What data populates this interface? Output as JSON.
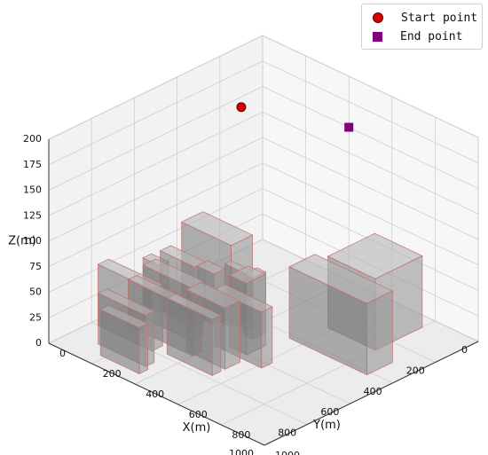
{
  "chart_data": {
    "type": "3d-scatter-with-boxes",
    "title": "",
    "xlabel": "X(m)",
    "ylabel": "Y(m)",
    "zlabel": "Z(m)",
    "xlim": [
      0,
      1000
    ],
    "ylim": [
      0,
      1000
    ],
    "zlim": [
      0,
      200
    ],
    "x_ticks": [
      "0",
      "200",
      "400",
      "600",
      "800",
      "1000"
    ],
    "y_ticks": [
      "0",
      "200",
      "400",
      "600",
      "800",
      "1000"
    ],
    "z_ticks": [
      "0",
      "25",
      "50",
      "75",
      "100",
      "125",
      "150",
      "175",
      "200"
    ],
    "grid": true,
    "legend_position": "top-right",
    "series": [
      {
        "name": "Start point",
        "marker": "circle",
        "color": "#d40000",
        "x": 0,
        "y": 100,
        "z": 140
      },
      {
        "name": "End point",
        "marker": "square",
        "color": "#800080",
        "x": 400,
        "y": 0,
        "z": 150
      }
    ],
    "obstacles": [
      {
        "x": [
          580,
          800
        ],
        "y": [
          60,
          280
        ],
        "z": [
          0,
          70
        ]
      },
      {
        "x": [
          540,
          900
        ],
        "y": [
          300,
          420
        ],
        "z": [
          0,
          70
        ]
      },
      {
        "x": [
          420,
          460
        ],
        "y": [
          450,
          510
        ],
        "z": [
          0,
          60
        ]
      },
      {
        "x": [
          440,
          520
        ],
        "y": [
          510,
          600
        ],
        "z": [
          0,
          70
        ]
      },
      {
        "x": [
          300,
          400
        ],
        "y": [
          450,
          480
        ],
        "z": [
          0,
          55
        ]
      },
      {
        "x": [
          220,
          300
        ],
        "y": [
          480,
          530
        ],
        "z": [
          0,
          50
        ]
      },
      {
        "x": [
          120,
          350
        ],
        "y": [
          400,
          500
        ],
        "z": [
          0,
          80
        ]
      },
      {
        "x": [
          400,
          620
        ],
        "y": [
          580,
          630
        ],
        "z": [
          0,
          55
        ]
      },
      {
        "x": [
          360,
          540
        ],
        "y": [
          650,
          720
        ],
        "z": [
          0,
          60
        ]
      },
      {
        "x": [
          100,
          260
        ],
        "y": [
          530,
          580
        ],
        "z": [
          0,
          58
        ]
      },
      {
        "x": [
          30,
          110
        ],
        "y": [
          550,
          590
        ],
        "z": [
          0,
          45
        ]
      },
      {
        "x": [
          100,
          320
        ],
        "y": [
          600,
          660
        ],
        "z": [
          0,
          52
        ]
      },
      {
        "x": [
          330,
          540
        ],
        "y": [
          740,
          780
        ],
        "z": [
          0,
          55
        ]
      },
      {
        "x": [
          100,
          400
        ],
        "y": [
          690,
          730
        ],
        "z": [
          0,
          45
        ]
      },
      {
        "x": [
          30,
          280
        ],
        "y": [
          750,
          800
        ],
        "z": [
          0,
          60
        ]
      },
      {
        "x": [
          120,
          340
        ],
        "y": [
          850,
          890
        ],
        "z": [
          0,
          50
        ]
      },
      {
        "x": [
          180,
          360
        ],
        "y": [
          900,
          940
        ],
        "z": [
          0,
          45
        ]
      }
    ]
  }
}
